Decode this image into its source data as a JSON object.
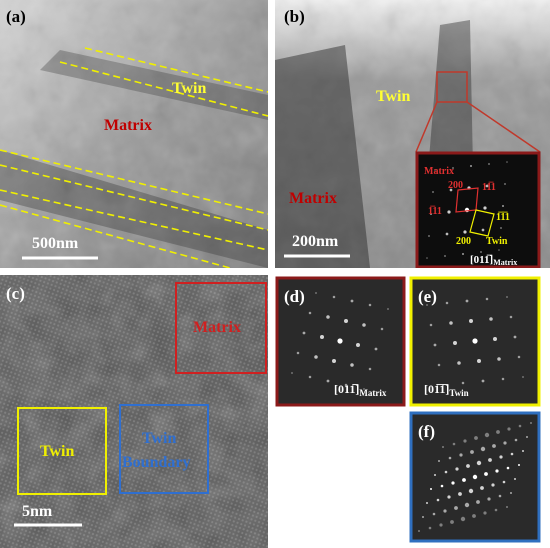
{
  "panel_a": {
    "label": "(a)",
    "twin": "Twin",
    "matrix": "Matrix",
    "scale_bar": "500nm"
  },
  "panel_b": {
    "label": "(b)",
    "twin": "Twin",
    "matrix": "Matrix",
    "scale_bar": "200nm",
    "inset": {
      "matrix": "Matrix",
      "spots": [
        "200",
        "11̅1",
        "1̅11",
        "1̅1̅1",
        "200"
      ],
      "twin": "Twin",
      "zone_axis": "[011̅]",
      "zone_subscript": "Matrix"
    }
  },
  "panel_c": {
    "label": "(c)",
    "matrix": "Matrix",
    "twin": "Twin",
    "twin_boundary": [
      "Twin",
      "Boundary"
    ],
    "scale_bar": "5nm"
  },
  "panel_d": {
    "label": "(d)",
    "zone_axis": "[011̅]",
    "zone_subscript": "Matrix"
  },
  "panel_e": {
    "label": "(e)",
    "zone_axis": "[01̅1̅]",
    "zone_subscript": "Twin"
  },
  "panel_f": {
    "label": "(f)"
  }
}
